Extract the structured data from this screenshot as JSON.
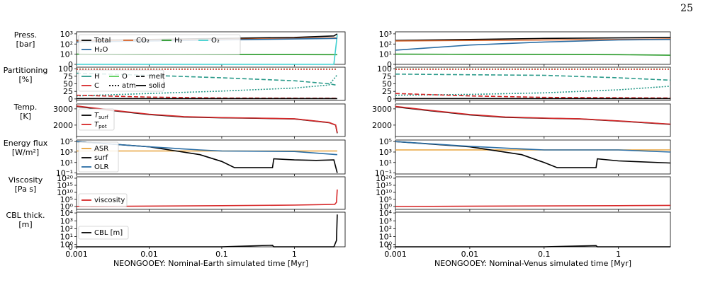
{
  "page_number": "25",
  "xlabels": [
    "NEONGOOEY: Nominal-Earth simulated time [Myr]",
    "NEONGOOEY: Nominal-Venus simulated time [Myr]"
  ],
  "x_ticks": [
    "0.001",
    "0.01",
    "0.1",
    "1"
  ],
  "x_tick_values": [
    0.001,
    0.01,
    0.1,
    1
  ],
  "x_range": [
    0.001,
    5
  ],
  "rows": [
    {
      "key": "pressure",
      "ylabel": [
        "Press.",
        "[bar]"
      ],
      "ticks": [
        {
          "v": 0,
          "t": "0"
        },
        {
          "v": 1,
          "t": "10¹"
        },
        {
          "v": 2,
          "t": "10²"
        },
        {
          "v": 3,
          "t": "10³"
        }
      ],
      "ylim": [
        0,
        3.2
      ],
      "legend": [
        "Total",
        "CO₂",
        "H₂",
        "O₂",
        "H₂O"
      ]
    },
    {
      "key": "partitioning",
      "ylabel": [
        "Partitioning",
        "[%]"
      ],
      "ticks": [
        {
          "v": 0,
          "t": "0"
        },
        {
          "v": 25,
          "t": "25"
        },
        {
          "v": 50,
          "t": "50"
        },
        {
          "v": 75,
          "t": "75"
        },
        {
          "v": 100,
          "t": "100"
        }
      ],
      "ylim": [
        -5,
        105
      ],
      "legend": [
        "H",
        "O",
        "melt",
        "C",
        "atm",
        "solid"
      ]
    },
    {
      "key": "temperature",
      "ylabel": [
        "Temp.",
        "[K]"
      ],
      "ticks": [
        {
          "v": 2000,
          "t": "2000"
        },
        {
          "v": 3000,
          "t": "3000"
        }
      ],
      "ylim": [
        1300,
        3300
      ],
      "legend": [
        "T_surf",
        "T_pot"
      ]
    },
    {
      "key": "energy",
      "ylabel": [
        "Energy flux",
        "[W/m²]"
      ],
      "ticks": [
        {
          "v": -1,
          "t": "10⁻¹"
        },
        {
          "v": 1,
          "t": "10¹"
        },
        {
          "v": 3,
          "t": "10³"
        },
        {
          "v": 5,
          "t": "10⁵"
        }
      ],
      "ylim": [
        -1.2,
        5.3
      ],
      "legend": [
        "ASR",
        "surf",
        "OLR"
      ]
    },
    {
      "key": "viscosity",
      "ylabel": [
        "Viscosity",
        "[Pa s]"
      ],
      "ticks": [
        {
          "v": 0,
          "t": "10⁰"
        },
        {
          "v": 5,
          "t": "10⁵"
        },
        {
          "v": 10,
          "t": "10¹⁰"
        },
        {
          "v": 15,
          "t": "10¹⁵"
        },
        {
          "v": 20,
          "t": "10²⁰"
        }
      ],
      "ylim": [
        -2,
        21
      ],
      "legend": [
        "viscosity"
      ]
    },
    {
      "key": "cbl",
      "ylabel": [
        "CBL thick.",
        "[m]"
      ],
      "ticks": [
        {
          "v": -0.3,
          "t": "0"
        },
        {
          "v": 0,
          "t": "10⁰"
        },
        {
          "v": 1,
          "t": "10¹"
        },
        {
          "v": 2,
          "t": "10²"
        },
        {
          "v": 3,
          "t": "10³"
        },
        {
          "v": 4,
          "t": "10⁴"
        }
      ],
      "ylim": [
        -0.3,
        4.1
      ],
      "legend": [
        "CBL [m]"
      ]
    }
  ],
  "colors": {
    "black": "#000000",
    "orange_co2": "#d9652b",
    "green_h2": "#2a9a2a",
    "cyan_o2": "#3fd0d0",
    "blue_h2o": "#2b6ea5",
    "red": "#d62728",
    "teal_h": "#2a9a8a",
    "green_o": "#55cc55",
    "asr": "#e8a33c",
    "olr": "#2b6ea5"
  },
  "chart_data": [
    {
      "type": "line",
      "title": "",
      "xlabel": "NEONGOOEY: Nominal-Earth simulated time [Myr]",
      "xscale": "log",
      "panels": {
        "pressure": {
          "series": [
            {
              "name": "Total",
              "color": "#000000",
              "x": [
                0.001,
                0.01,
                0.1,
                1,
                3.5,
                3.9
              ],
              "y": [
                2.35,
                2.45,
                2.55,
                2.65,
                2.8,
                3.0
              ]
            },
            {
              "name": "CO₂",
              "color": "#d9652b",
              "x": [
                0.001,
                0.01,
                0.1,
                1,
                3.9
              ],
              "y": [
                2.3,
                2.35,
                2.45,
                2.55,
                2.6
              ]
            },
            {
              "name": "H₂",
              "color": "#2a9a2a",
              "x": [
                0.001,
                0.01,
                0.1,
                1,
                3.9
              ],
              "y": [
                1.0,
                0.98,
                0.97,
                0.96,
                0.95
              ]
            },
            {
              "name": "O₂",
              "color": "#3fd0d0",
              "x": [
                0.001,
                3.5,
                3.7,
                3.9
              ],
              "y": [
                0,
                0,
                1.5,
                2.9
              ]
            },
            {
              "name": "H₂O",
              "color": "#2b6ea5",
              "x": [
                0.001,
                0.01,
                0.1,
                1,
                3.9
              ],
              "y": [
                2.2,
                2.3,
                2.4,
                2.5,
                2.55
              ]
            }
          ]
        },
        "partitioning": {
          "series": [
            {
              "name": "H melt",
              "color": "#2a9a8a",
              "dash": "6,3",
              "x": [
                0.001,
                0.01,
                0.1,
                1,
                3.0,
                3.9
              ],
              "y": [
                85,
                78,
                70,
                60,
                50,
                45
              ]
            },
            {
              "name": "H atm",
              "color": "#2a9a8a",
              "dash": "2,2",
              "x": [
                0.001,
                0.01,
                0.1,
                1,
                3.0,
                3.9
              ],
              "y": [
                10,
                18,
                26,
                36,
                46,
                80
              ]
            },
            {
              "name": "O atm",
              "color": "#55cc55",
              "dash": "2,2",
              "x": [
                0.001,
                3.9
              ],
              "y": [
                99,
                99
              ]
            },
            {
              "name": "C atm",
              "color": "#d62728",
              "dash": "2,2",
              "x": [
                0.001,
                3.9
              ],
              "y": [
                98,
                98
              ]
            },
            {
              "name": "C melt",
              "color": "#d62728",
              "dash": "6,3",
              "x": [
                0.001,
                0.01,
                0.1,
                3.9
              ],
              "y": [
                12,
                6,
                3,
                2
              ]
            },
            {
              "name": "solid",
              "color": "#000000",
              "x": [
                0.001,
                3.9
              ],
              "y": [
                1,
                1
              ]
            }
          ]
        },
        "temperature": {
          "series": [
            {
              "name": "T_surf",
              "color": "#000000",
              "x": [
                0.001,
                0.003,
                0.01,
                0.03,
                0.1,
                0.3,
                1,
                3.0,
                3.7,
                3.9
              ],
              "y": [
                3150,
                2900,
                2650,
                2500,
                2450,
                2420,
                2380,
                2150,
                2000,
                1500
              ]
            },
            {
              "name": "T_pot",
              "color": "#d62728",
              "x": [
                0.001,
                0.003,
                0.01,
                0.03,
                0.1,
                0.3,
                1,
                3.0,
                3.7,
                3.9
              ],
              "y": [
                3180,
                2920,
                2670,
                2520,
                2460,
                2430,
                2390,
                2160,
                2010,
                1530
              ]
            }
          ]
        },
        "energy": {
          "series": [
            {
              "name": "ASR",
              "color": "#e8a33c",
              "x": [
                0.001,
                3.9
              ],
              "y": [
                3.2,
                3.2
              ]
            },
            {
              "name": "surf",
              "color": "#000000",
              "x": [
                0.001,
                0.01,
                0.05,
                0.1,
                0.15,
                0.2,
                0.5,
                0.52,
                1,
                2,
                3.5,
                3.9
              ],
              "y": [
                5.0,
                4.0,
                2.5,
                1.2,
                0.0,
                0.0,
                0.0,
                1.7,
                1.5,
                1.4,
                1.5,
                -1.0
              ]
            },
            {
              "name": "OLR",
              "color": "#2b6ea5",
              "x": [
                0.001,
                0.01,
                0.05,
                0.1,
                1,
                3.9
              ],
              "y": [
                5.0,
                4.0,
                3.4,
                3.2,
                3.1,
                2.5
              ]
            }
          ]
        },
        "viscosity": {
          "series": [
            {
              "name": "viscosity",
              "color": "#d62728",
              "x": [
                0.001,
                0.01,
                0.1,
                1,
                3.6,
                3.8,
                3.9
              ],
              "y": [
                0.0,
                0.3,
                0.6,
                1.0,
                1.5,
                3.0,
                12.0
              ]
            }
          ]
        },
        "cbl": {
          "series": [
            {
              "name": "CBL [m]",
              "color": "#000000",
              "x": [
                0.001,
                0.1,
                0.5,
                0.52,
                3.5,
                3.8,
                3.9
              ],
              "y": [
                -0.3,
                -0.3,
                -0.1,
                -0.3,
                -0.3,
                0.5,
                3.8
              ]
            }
          ]
        }
      }
    },
    {
      "type": "line",
      "title": "",
      "xlabel": "NEONGOOEY: Nominal-Venus simulated time [Myr]",
      "xscale": "log",
      "panels": {
        "pressure": {
          "series": [
            {
              "name": "Total",
              "color": "#000000",
              "x": [
                0.001,
                0.01,
                0.1,
                1,
                5
              ],
              "y": [
                2.35,
                2.45,
                2.55,
                2.6,
                2.65
              ]
            },
            {
              "name": "CO₂",
              "color": "#d9652b",
              "x": [
                0.001,
                0.01,
                0.1,
                1,
                5
              ],
              "y": [
                2.3,
                2.35,
                2.4,
                2.45,
                2.5
              ]
            },
            {
              "name": "H₂",
              "color": "#2a9a2a",
              "x": [
                0.001,
                0.01,
                0.1,
                1,
                5
              ],
              "y": [
                1.0,
                0.99,
                0.98,
                0.95,
                0.9
              ]
            },
            {
              "name": "H₂O",
              "color": "#2b6ea5",
              "x": [
                0.001,
                0.01,
                0.1,
                1,
                5
              ],
              "y": [
                1.4,
                1.9,
                2.2,
                2.4,
                2.45
              ]
            }
          ]
        },
        "partitioning": {
          "series": [
            {
              "name": "H melt",
              "color": "#2a9a8a",
              "dash": "6,3",
              "x": [
                0.001,
                0.01,
                0.1,
                1,
                5
              ],
              "y": [
                82,
                80,
                78,
                70,
                62
              ]
            },
            {
              "name": "H atm",
              "color": "#2a9a8a",
              "dash": "2,2",
              "x": [
                0.001,
                0.01,
                0.1,
                1,
                5
              ],
              "y": [
                12,
                15,
                20,
                30,
                42
              ]
            },
            {
              "name": "O atm",
              "color": "#55cc55",
              "dash": "2,2",
              "x": [
                0.001,
                5
              ],
              "y": [
                99,
                99
              ]
            },
            {
              "name": "C atm",
              "color": "#d62728",
              "dash": "2,2",
              "x": [
                0.001,
                5
              ],
              "y": [
                98,
                98
              ]
            },
            {
              "name": "C melt",
              "color": "#d62728",
              "dash": "6,3",
              "x": [
                0.001,
                0.01,
                0.1,
                5
              ],
              "y": [
                18,
                10,
                5,
                3
              ]
            },
            {
              "name": "solid",
              "color": "#000000",
              "x": [
                0.001,
                5
              ],
              "y": [
                1,
                1
              ]
            }
          ]
        },
        "temperature": {
          "series": [
            {
              "name": "T_surf",
              "color": "#000000",
              "x": [
                0.001,
                0.003,
                0.01,
                0.03,
                0.1,
                0.3,
                1,
                5
              ],
              "y": [
                3120,
                2880,
                2630,
                2480,
                2420,
                2380,
                2250,
                2050
              ]
            },
            {
              "name": "T_pot",
              "color": "#d62728",
              "x": [
                0.001,
                0.003,
                0.01,
                0.03,
                0.1,
                0.3,
                1,
                5
              ],
              "y": [
                3150,
                2900,
                2650,
                2500,
                2430,
                2390,
                2260,
                2060
              ]
            }
          ]
        },
        "energy": {
          "series": [
            {
              "name": "ASR",
              "color": "#e8a33c",
              "x": [
                0.001,
                5
              ],
              "y": [
                3.4,
                3.4
              ]
            },
            {
              "name": "surf",
              "color": "#000000",
              "x": [
                0.001,
                0.01,
                0.05,
                0.1,
                0.15,
                0.2,
                0.5,
                0.52,
                1,
                5
              ],
              "y": [
                5.0,
                4.0,
                2.5,
                1.0,
                0.0,
                0.0,
                0.0,
                1.7,
                1.3,
                0.9
              ]
            },
            {
              "name": "OLR",
              "color": "#2b6ea5",
              "x": [
                0.001,
                0.01,
                0.05,
                0.1,
                1,
                5
              ],
              "y": [
                5.0,
                4.1,
                3.6,
                3.4,
                3.4,
                3.0
              ]
            }
          ]
        },
        "viscosity": {
          "series": [
            {
              "name": "viscosity",
              "color": "#d62728",
              "x": [
                0.001,
                0.01,
                0.1,
                1,
                5
              ],
              "y": [
                0.0,
                0.2,
                0.4,
                0.6,
                0.8
              ]
            }
          ]
        },
        "cbl": {
          "series": [
            {
              "name": "CBL [m]",
              "color": "#000000",
              "x": [
                0.001,
                0.1,
                0.5,
                0.52,
                5
              ],
              "y": [
                -0.3,
                -0.3,
                -0.15,
                -0.3,
                -0.3
              ]
            }
          ]
        }
      }
    }
  ]
}
